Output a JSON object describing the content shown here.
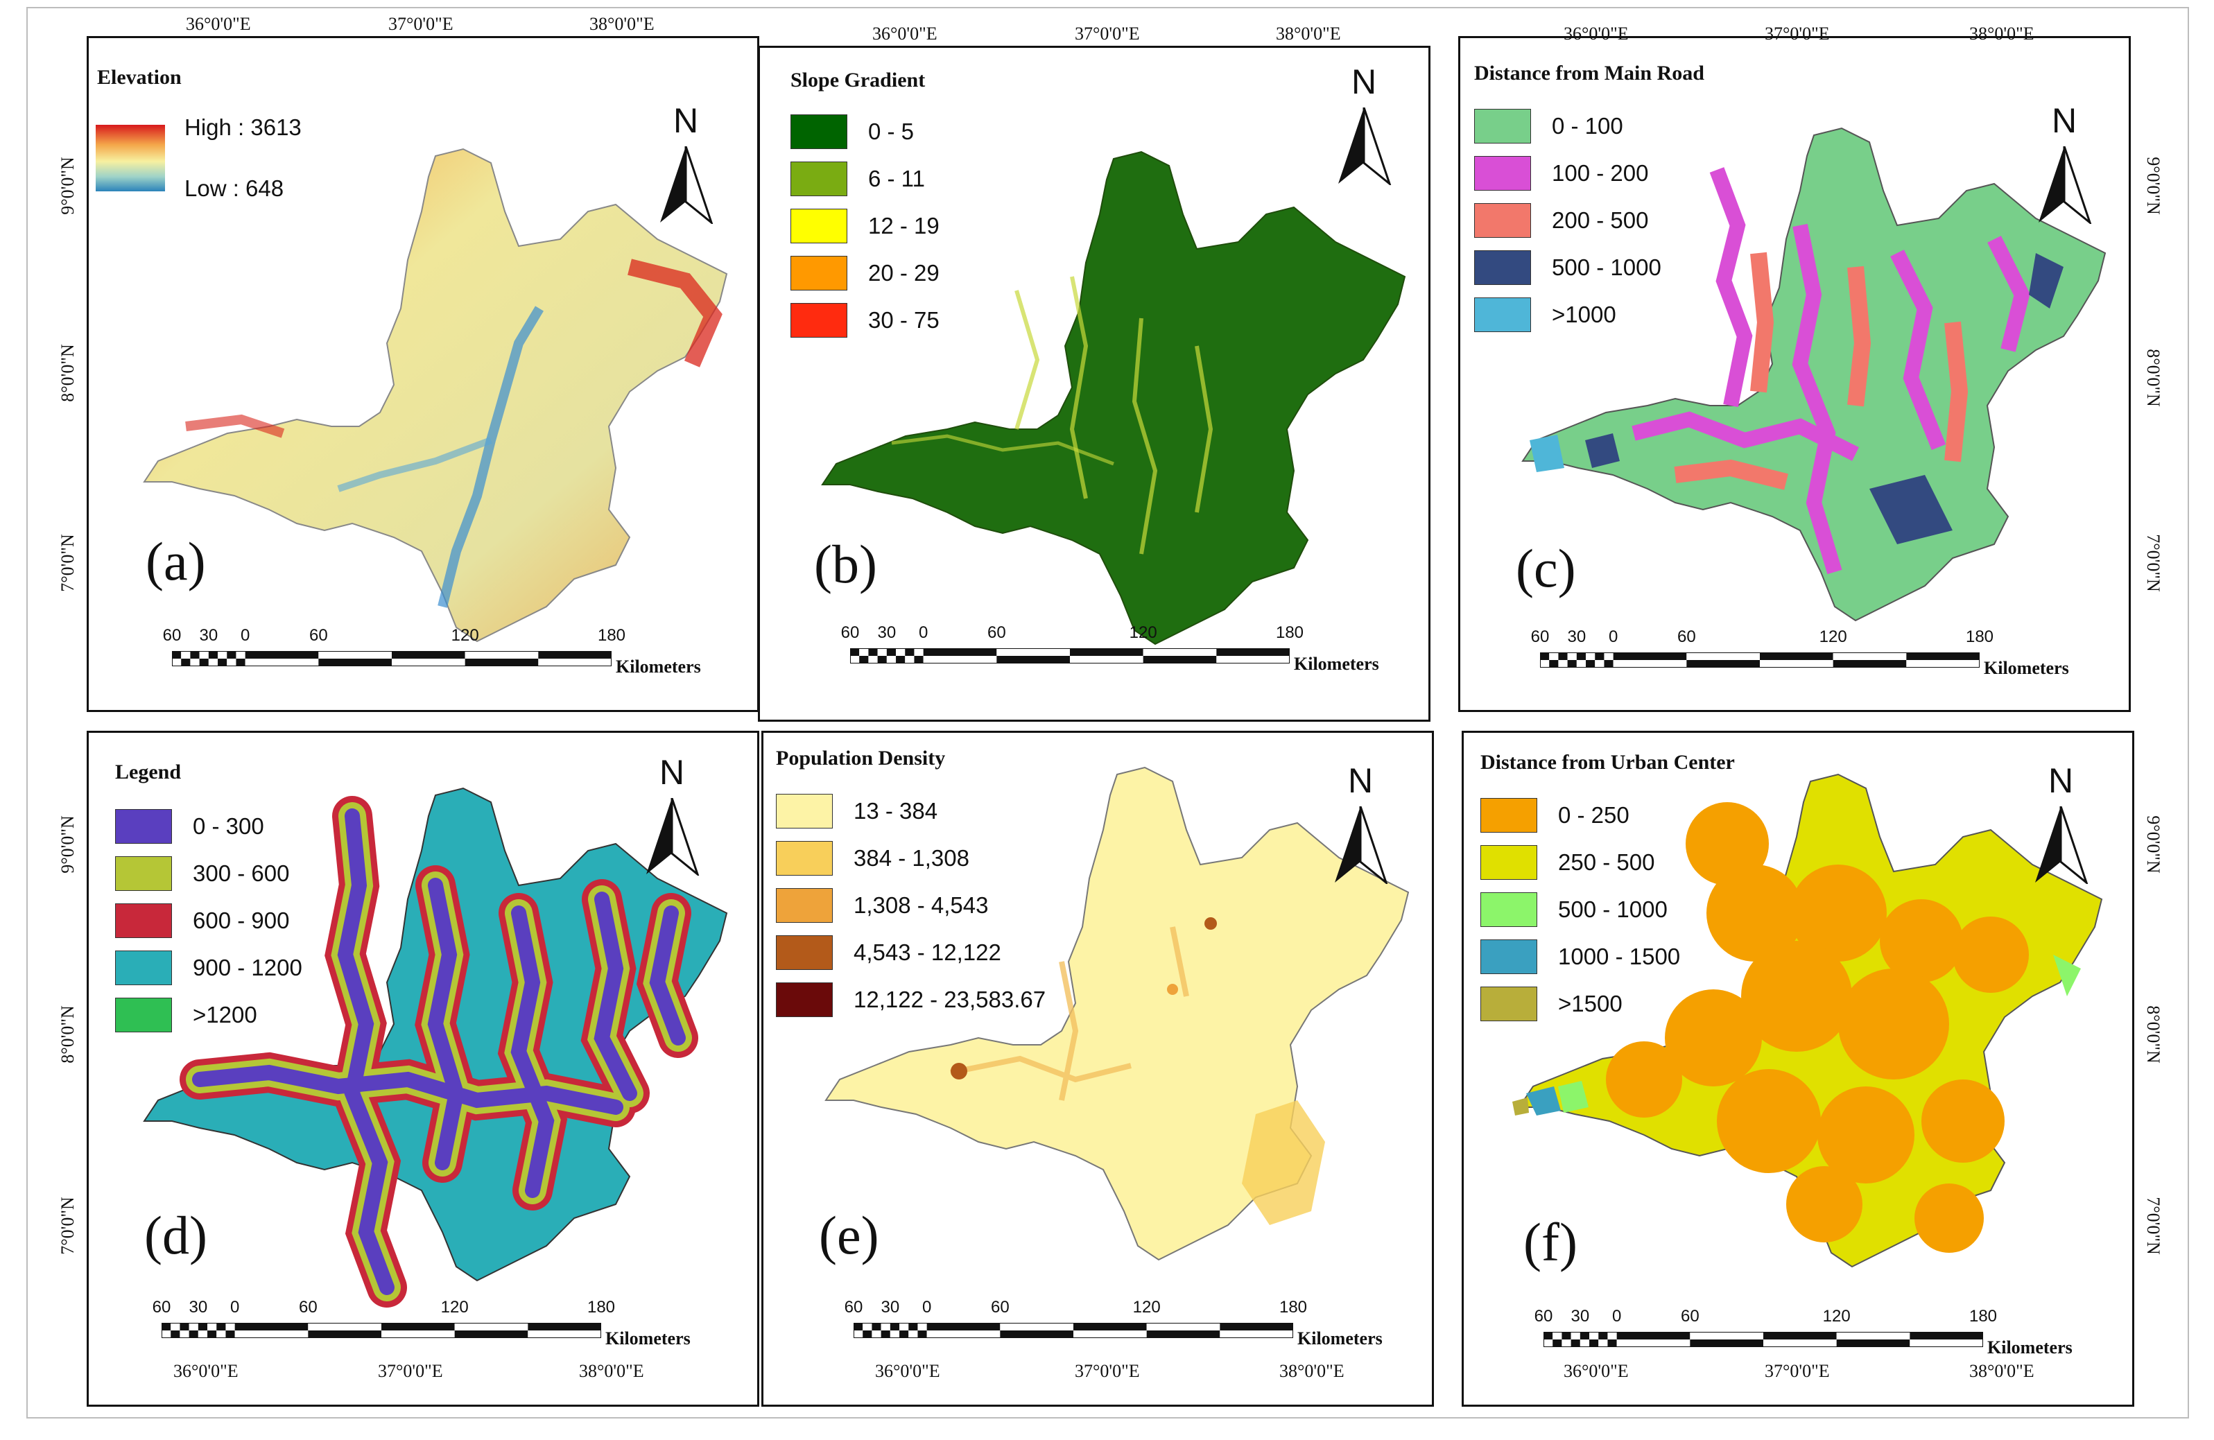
{
  "coordinates": {
    "lon": [
      "36°0'0\"E",
      "37°0'0\"E",
      "38°0'0\"E"
    ],
    "lat": [
      "9°0'0\"N",
      "8°0'0\"N",
      "7°0'0\"N"
    ]
  },
  "scalebar": {
    "ticks": [
      "60",
      "30",
      "0",
      "60",
      "120",
      "180"
    ],
    "unit": "Kilometers"
  },
  "north_label": "N",
  "panels": {
    "a": {
      "label": "(a)",
      "legend_title": "Elevation",
      "high": "High : 3613",
      "low": "Low : 648",
      "colors": {
        "high": "#d7191c",
        "mid": "#f7f0a0",
        "low": "#2b83ba"
      }
    },
    "b": {
      "label": "(b)",
      "legend_title": "Slope Gradient",
      "classes": [
        {
          "label": "0 - 5",
          "color": "#006400"
        },
        {
          "label": "6 - 11",
          "color": "#7aac12"
        },
        {
          "label": "12 - 19",
          "color": "#ffff00"
        },
        {
          "label": "20 - 29",
          "color": "#ff9900"
        },
        {
          "label": "30 - 75",
          "color": "#ff2b0f"
        }
      ]
    },
    "c": {
      "label": "(c)",
      "legend_title": "Distance from Main Road",
      "classes": [
        {
          "label": "0 - 100",
          "color": "#78cf8a"
        },
        {
          "label": "100 - 200",
          "color": "#d94fd6"
        },
        {
          "label": "200 - 500",
          "color": "#f2786b"
        },
        {
          "label": "500 - 1000",
          "color": "#334a80"
        },
        {
          "label": ">1000",
          "color": "#4fb6d8"
        }
      ]
    },
    "d": {
      "label": "(d)",
      "legend_title": "Legend",
      "classes": [
        {
          "label": "0 - 300",
          "color": "#5a3fbf"
        },
        {
          "label": "300 - 600",
          "color": "#b5c636"
        },
        {
          "label": "600 - 900",
          "color": "#c8283a"
        },
        {
          "label": "900 - 1200",
          "color": "#2aaeb7"
        },
        {
          "label": ">1200",
          "color": "#2fbf53"
        }
      ]
    },
    "e": {
      "label": "(e)",
      "legend_title": "Population Density",
      "classes": [
        {
          "label": "13 - 384",
          "color": "#fdf3a6"
        },
        {
          "label": "384 - 1,308",
          "color": "#f8cf5a"
        },
        {
          "label": "1,308 - 4,543",
          "color": "#eea33a"
        },
        {
          "label": "4,543 - 12,122",
          "color": "#b35a1a"
        },
        {
          "label": "12,122 - 23,583.67",
          "color": "#6a0a0a"
        }
      ]
    },
    "f": {
      "label": "(f)",
      "legend_title": "Distance from Urban Center",
      "classes": [
        {
          "label": "0 - 250",
          "color": "#f5a000"
        },
        {
          "label": "250 - 500",
          "color": "#e0e000"
        },
        {
          "label": "500 - 1000",
          "color": "#8cf56a"
        },
        {
          "label": "1000 - 1500",
          "color": "#3aa0c0"
        },
        {
          "label": ">1500",
          "color": "#b8ae3a"
        }
      ]
    }
  }
}
